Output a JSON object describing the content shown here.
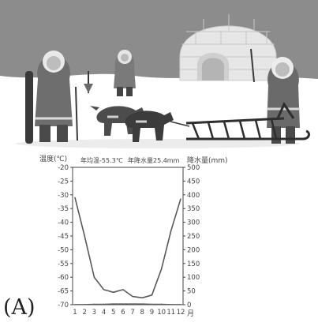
{
  "panel_label": "(A)",
  "colors": {
    "sky": "#8c8c8c",
    "snow": "#ffffff",
    "igloo": "#e6e6e6",
    "igloo_block_line": "#c8c8c8",
    "ground_shadow": "#d6d6d6",
    "line": "#5a5a5a",
    "axis": "#444444",
    "text": "#444444"
  },
  "scene": {
    "elements": [
      "igloo-icon",
      "person-with-ski-icon",
      "child-icon",
      "person-standing-icon",
      "sled-dog-icon",
      "sled-icon",
      "spear-icon"
    ]
  },
  "chart_data": {
    "type": "line",
    "title": "",
    "annotations": [
      "年均温-55.3℃",
      "年降水量25.4mm"
    ],
    "ylabel_left": "温度(℃)",
    "ylabel_right": "降水量(mm)",
    "xlabel": "月",
    "categories": [
      1,
      2,
      3,
      4,
      5,
      6,
      7,
      8,
      9,
      10,
      11,
      12
    ],
    "x_tick_labels": [
      "1",
      "2",
      "3",
      "4",
      "5",
      "6",
      "7",
      "8",
      "9",
      "10",
      "11",
      "12"
    ],
    "temperature_axis": {
      "range": [
        -70,
        -20
      ],
      "ticks": [
        "-20",
        "-25",
        "-30",
        "-35",
        "-40",
        "-45",
        "-50",
        "-55",
        "-60",
        "-65",
        "-70"
      ]
    },
    "precipitation_axis": {
      "range": [
        0,
        500
      ],
      "ticks": [
        "500",
        "450",
        "400",
        "350",
        "300",
        "250",
        "200",
        "150",
        "100",
        "50",
        "0"
      ]
    },
    "series": [
      {
        "kind": "temperature",
        "values": [
          -31,
          -45,
          -60,
          -64.5,
          -65.5,
          -64.5,
          -67,
          -67.5,
          -66.5,
          -57,
          -43,
          -31.5
        ]
      },
      {
        "kind": "precipitation",
        "values": [
          1,
          1,
          2,
          2,
          3,
          3,
          3,
          3,
          2,
          2,
          1,
          1
        ]
      }
    ],
    "grid": false,
    "legend": "none"
  }
}
